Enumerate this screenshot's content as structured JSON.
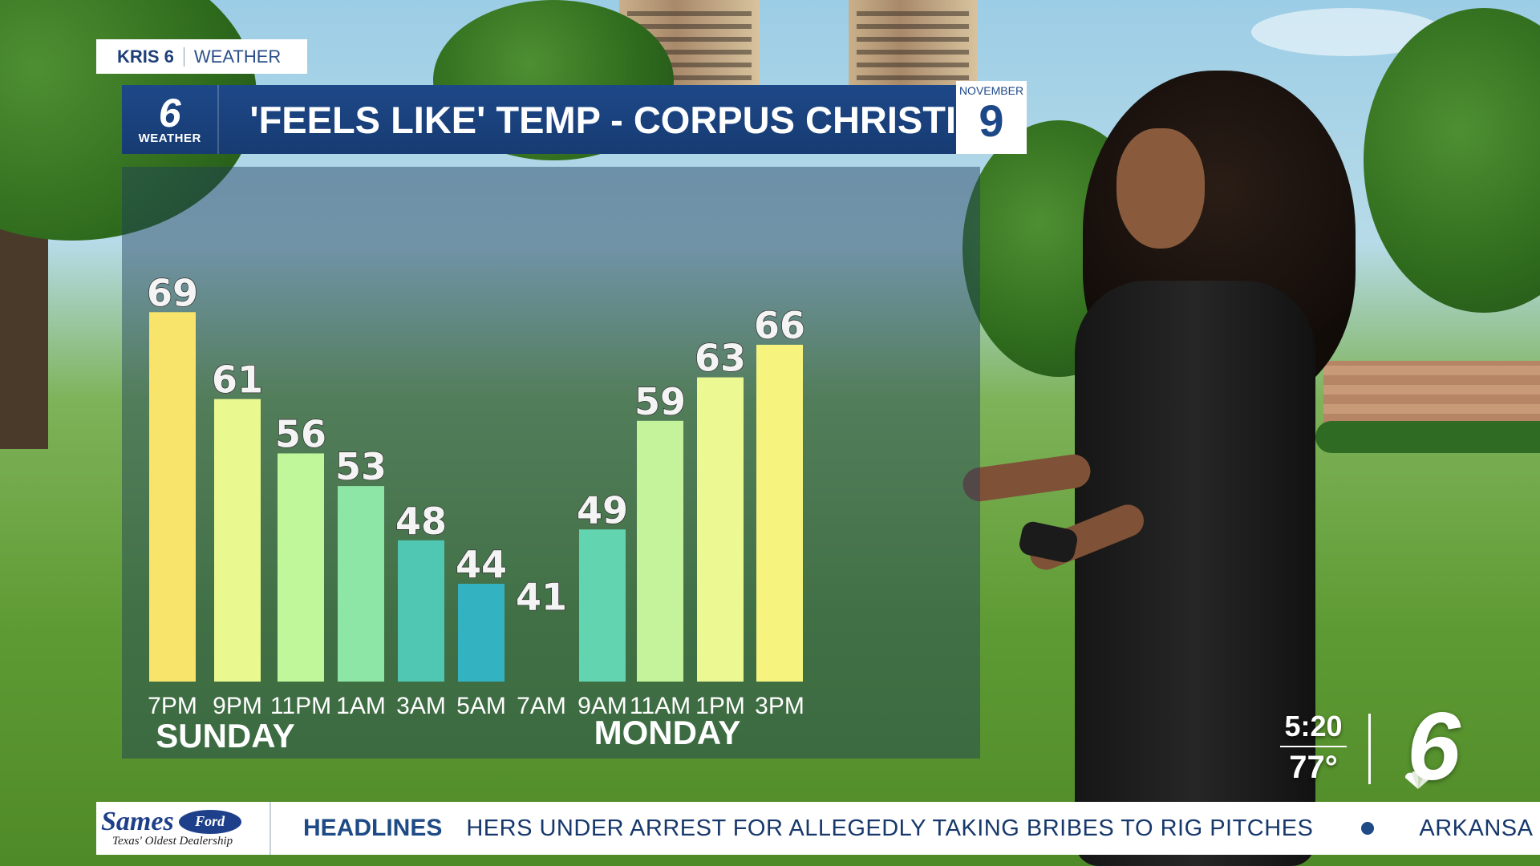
{
  "brand": {
    "station": "KRIS 6",
    "section": "WEATHER"
  },
  "logo": {
    "number": "6",
    "label": "WEATHER"
  },
  "title": "'FEELS LIKE' TEMP  - CORPUS CHRISTI",
  "date": {
    "month": "NOVEMBER",
    "day": "9"
  },
  "chart_data": {
    "type": "bar",
    "categories": [
      "7PM",
      "9PM",
      "11PM",
      "1AM",
      "3AM",
      "5AM",
      "7AM",
      "9AM",
      "11AM",
      "1PM",
      "3PM"
    ],
    "values": [
      69,
      61,
      56,
      53,
      48,
      44,
      41,
      49,
      59,
      63,
      66
    ],
    "day_labels": [
      "SUNDAY",
      "MONDAY"
    ],
    "colors": [
      "#f8e46a",
      "#e9f88f",
      "#c0f79a",
      "#8de6a5",
      "#4fc7b2",
      "#33b3c2",
      "#2b9fb8",
      "#62d4b0",
      "#c4f39b",
      "#ecf892",
      "#f6f37f"
    ]
  },
  "bug": {
    "time": "5:20",
    "temp": "77°",
    "station_number": "6"
  },
  "ticker": {
    "sponsor_name": "Sames",
    "sponsor_badge": "Ford",
    "sponsor_tagline": "Texas' Oldest Dealership",
    "label": "HEADLINES",
    "story": "HERS UNDER ARREST FOR ALLEGEDLY TAKING BRIBES TO RIG PITCHES",
    "next_story": "ARKANSA"
  }
}
